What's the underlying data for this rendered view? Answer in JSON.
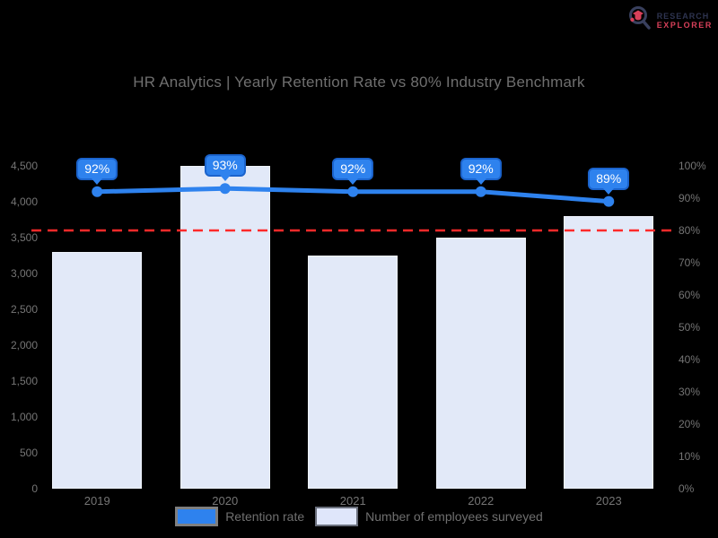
{
  "brand": {
    "icon": "magnifier-logo-icon",
    "line1": "RESEARCH",
    "line2": "EXPLORER",
    "line1_color": "#2e3450",
    "line2_color": "#d8405a"
  },
  "title": "HR Analytics | Yearly Retention Rate vs 80% Industry Benchmark",
  "colors": {
    "background": "#000000",
    "text_gray": "#757575",
    "line_blue": "#2e82ee",
    "badge_border": "#1b63cc",
    "bar_fill": "#e2e9f8",
    "benchmark_red": "#ff2a2a"
  },
  "chart_data": {
    "type": "bar",
    "subtype": "combo-bar-line",
    "categories": [
      "2019",
      "2020",
      "2021",
      "2022",
      "2023"
    ],
    "series": [
      {
        "name": "Retention rate",
        "type": "line",
        "axis": "right",
        "values": [
          92,
          93,
          92,
          92,
          89
        ],
        "point_labels": [
          "92%",
          "93%",
          "92%",
          "92%",
          "89%"
        ],
        "color": "#2e82ee"
      },
      {
        "name": "Number of employees surveyed",
        "type": "bar",
        "axis": "left",
        "values": [
          3300,
          4500,
          3250,
          3500,
          3800
        ],
        "color": "#e2e9f8"
      }
    ],
    "benchmark_line": {
      "axis": "right",
      "value": 80,
      "style": "dashed",
      "color": "#ff2a2a"
    },
    "left_axis": {
      "range": [
        0,
        4500
      ],
      "ticks": [
        "4,500",
        "4,000",
        "3,500",
        "3,000",
        "2,500",
        "2,000",
        "1,500",
        "1,000",
        "500",
        "0"
      ],
      "tick_values": [
        4500,
        4000,
        3500,
        3000,
        2500,
        2000,
        1500,
        1000,
        500,
        0
      ]
    },
    "right_axis": {
      "range": [
        0,
        100
      ],
      "ticks": [
        "100%",
        "90%",
        "80%",
        "70%",
        "60%",
        "50%",
        "40%",
        "30%",
        "20%",
        "10%",
        "0%"
      ],
      "tick_values": [
        100,
        90,
        80,
        70,
        60,
        50,
        40,
        30,
        20,
        10,
        0
      ]
    },
    "grid": false,
    "legend_position": "bottom"
  },
  "legend": {
    "items": [
      {
        "label": "Retention rate",
        "swatch": "blue"
      },
      {
        "label": "Number of employees surveyed",
        "swatch": "lavender"
      }
    ]
  }
}
